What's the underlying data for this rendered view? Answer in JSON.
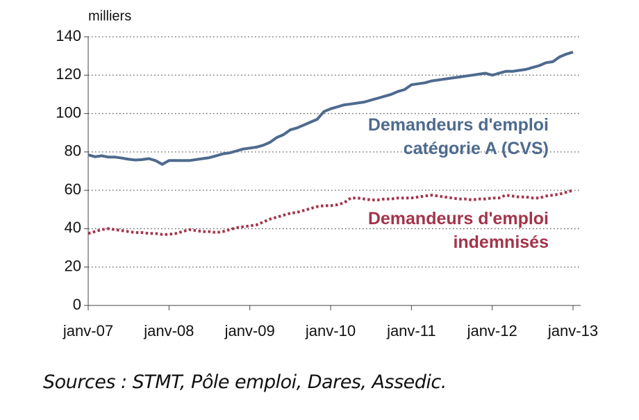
{
  "chart_data": {
    "type": "line",
    "ylabel": "milliers",
    "source": "Sources : STMT, Pôle emploi, Dares, Assedic.",
    "categories": [
      "janv-07",
      null,
      null,
      null,
      null,
      null,
      null,
      null,
      null,
      null,
      null,
      null,
      "janv-08",
      null,
      null,
      null,
      null,
      null,
      null,
      null,
      null,
      null,
      null,
      null,
      "janv-09",
      null,
      null,
      null,
      null,
      null,
      null,
      null,
      null,
      null,
      null,
      null,
      "janv-10",
      null,
      null,
      null,
      null,
      null,
      null,
      null,
      null,
      null,
      null,
      null,
      "janv-11",
      null,
      null,
      null,
      null,
      null,
      null,
      null,
      null,
      null,
      null,
      null,
      "janv-12",
      null,
      null,
      null,
      null,
      null,
      null,
      null,
      null,
      null,
      null,
      null,
      "janv-13"
    ],
    "series": [
      {
        "name": "Demandeurs d'emploi catégorie A (CVS)",
        "color": "#4e6a8e",
        "line_style": "solid",
        "values": [
          78.5,
          77.5,
          78,
          77.3,
          77.3,
          76.8,
          76.2,
          75.8,
          76,
          76.5,
          75.5,
          73.5,
          75.5,
          75.5,
          75.5,
          75.5,
          76,
          76.5,
          77,
          78,
          79,
          79.5,
          80.5,
          81.5,
          82,
          82.5,
          83.5,
          85,
          87.5,
          89,
          91.5,
          92.5,
          94,
          95.5,
          97,
          101,
          102.5,
          103.5,
          104.5,
          105,
          105.5,
          106,
          107,
          108,
          109,
          110,
          111.5,
          112.5,
          115,
          115.5,
          116,
          117,
          117.5,
          118,
          118.5,
          119,
          119.5,
          120,
          120.5,
          121,
          120,
          121,
          122,
          122,
          122.5,
          123,
          124,
          125,
          126.5,
          127,
          129.5,
          131,
          132
        ]
      },
      {
        "name": "Demandeurs d'emploi indemnisés",
        "color": "#a3344a",
        "line_style": "dotted",
        "values": [
          37.5,
          38.5,
          39.5,
          40,
          39.5,
          39,
          38.5,
          38,
          38,
          37.5,
          37.5,
          37,
          37,
          37.5,
          38.5,
          39.5,
          39,
          38.5,
          38.5,
          38,
          38.5,
          39.5,
          40.5,
          41,
          41.5,
          42,
          43.5,
          45,
          46,
          47,
          48,
          48.5,
          49.5,
          50.5,
          51.5,
          52,
          52,
          52.5,
          53.5,
          56,
          56,
          55.5,
          55,
          55,
          55.5,
          55.5,
          56,
          56,
          56,
          56.5,
          57,
          57.5,
          57,
          56.5,
          56,
          55.5,
          55.5,
          55,
          55.5,
          55.5,
          56,
          56,
          57.5,
          57,
          56.5,
          56.5,
          56,
          56,
          57,
          57.5,
          58,
          59,
          60
        ]
      }
    ],
    "ylim": [
      0,
      140
    ],
    "yticks": [
      0,
      20,
      40,
      60,
      80,
      100,
      120,
      140
    ],
    "grid": true
  }
}
